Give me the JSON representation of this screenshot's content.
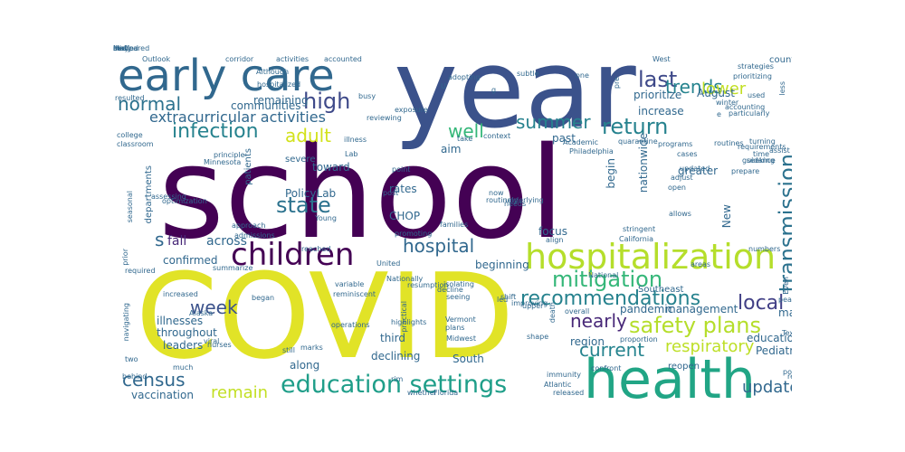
{
  "words": [
    {
      "text": "school",
      "color": "#440154"
    },
    {
      "text": "COVID",
      "color": "#e1e327"
    },
    {
      "text": "year",
      "color": "#3b528b"
    },
    {
      "text": "health",
      "color": "#21a585"
    },
    {
      "text": "early care",
      "color": "#31688e"
    },
    {
      "text": "hospitalization",
      "color": "#b5de2b"
    },
    {
      "text": "children",
      "color": "#440154"
    },
    {
      "text": "education settings",
      "color": "#1f9e89"
    },
    {
      "text": "transmission",
      "color": "#2c728e"
    },
    {
      "text": "safety plans",
      "color": "#b5de2b"
    },
    {
      "text": "mitigation",
      "color": "#35b779"
    },
    {
      "text": "recommendations",
      "color": "#26828e"
    },
    {
      "text": "infection",
      "color": "#26828e"
    },
    {
      "text": "return",
      "color": "#26828e"
    },
    {
      "text": "hospital",
      "color": "#31688e"
    },
    {
      "text": "summer",
      "color": "#26828e"
    },
    {
      "text": "census",
      "color": "#31688e"
    },
    {
      "text": "nearly",
      "color": "#482878"
    },
    {
      "text": "high",
      "color": "#3e4989"
    },
    {
      "text": "respiratory",
      "color": "#bddf26"
    },
    {
      "text": "state",
      "color": "#2c728e"
    },
    {
      "text": "current",
      "color": "#25838e"
    },
    {
      "text": "update",
      "color": "#31688e"
    },
    {
      "text": "local",
      "color": "#424086"
    },
    {
      "text": "last",
      "color": "#3e4989"
    },
    {
      "text": "trends",
      "color": "#25838e"
    },
    {
      "text": "remain",
      "color": "#c2df23"
    },
    {
      "text": "normal",
      "color": "#2c728e"
    },
    {
      "text": "week",
      "color": "#3b528b"
    },
    {
      "text": "adult",
      "color": "#d2e21b"
    },
    {
      "text": "lower",
      "color": "#c2df23"
    },
    {
      "text": "well",
      "color": "#35b779"
    },
    {
      "text": "extracurricular activities",
      "color": "#31688e"
    },
    {
      "text": "s",
      "color": "#31688e"
    },
    {
      "text": "fall",
      "color": "#482878"
    },
    {
      "text": "across",
      "color": "#31688e"
    },
    {
      "text": "illnesses",
      "color": "#31688e"
    },
    {
      "text": "throughout",
      "color": "#31688e"
    },
    {
      "text": "leaders",
      "color": "#31688e"
    },
    {
      "text": "confirmed",
      "color": "#31688e"
    },
    {
      "text": "vaccination",
      "color": "#31688e"
    },
    {
      "text": "declining",
      "color": "#31688e"
    },
    {
      "text": "third",
      "color": "#31688e"
    },
    {
      "text": "along",
      "color": "#31688e"
    },
    {
      "text": "South",
      "color": "#31688e"
    },
    {
      "text": "pandemic",
      "color": "#31688e"
    },
    {
      "text": "management",
      "color": "#31688e"
    },
    {
      "text": "education",
      "color": "#31688e"
    },
    {
      "text": "Pediatric",
      "color": "#31688e"
    },
    {
      "text": "rates",
      "color": "#31688e"
    },
    {
      "text": "CHOP",
      "color": "#31688e"
    },
    {
      "text": "PolicyLab",
      "color": "#31688e"
    },
    {
      "text": "toward",
      "color": "#31688e"
    },
    {
      "text": "severe",
      "color": "#31688e"
    },
    {
      "text": "patients",
      "color": "#31688e"
    },
    {
      "text": "departments",
      "color": "#31688e"
    },
    {
      "text": "focus",
      "color": "#31688e"
    },
    {
      "text": "beginning",
      "color": "#31688e"
    },
    {
      "text": "nationwide",
      "color": "#31688e"
    },
    {
      "text": "begin",
      "color": "#31688e"
    },
    {
      "text": "greater",
      "color": "#31688e"
    },
    {
      "text": "prioritize",
      "color": "#31688e"
    },
    {
      "text": "increase",
      "color": "#31688e"
    },
    {
      "text": "August",
      "color": "#31688e"
    },
    {
      "text": "past",
      "color": "#31688e"
    },
    {
      "text": "aim",
      "color": "#31688e"
    },
    {
      "text": "remaining",
      "color": "#31688e"
    },
    {
      "text": "communities",
      "color": "#31688e"
    },
    {
      "text": "New",
      "color": "#31688e"
    },
    {
      "text": "many",
      "color": "#31688e"
    },
    {
      "text": "region",
      "color": "#31688e"
    },
    {
      "text": "country",
      "color": "#31688e"
    },
    {
      "text": "strategies",
      "color": "#31688e"
    },
    {
      "text": "prioritizing",
      "color": "#31688e"
    },
    {
      "text": "particularly",
      "color": "#31688e"
    },
    {
      "text": "winter",
      "color": "#31688e"
    },
    {
      "text": "routines",
      "color": "#31688e"
    },
    {
      "text": "requirements",
      "color": "#31688e"
    },
    {
      "text": "prepare",
      "color": "#31688e"
    },
    {
      "text": "updated",
      "color": "#31688e"
    },
    {
      "text": "cases",
      "color": "#31688e"
    },
    {
      "text": "programs",
      "color": "#31688e"
    },
    {
      "text": "open",
      "color": "#31688e"
    },
    {
      "text": "allows",
      "color": "#31688e"
    },
    {
      "text": "reopen",
      "color": "#31688e"
    },
    {
      "text": "Southeast",
      "color": "#31688e"
    },
    {
      "text": "overall",
      "color": "#31688e"
    },
    {
      "text": "improving",
      "color": "#31688e"
    },
    {
      "text": "Vermont",
      "color": "#31688e"
    },
    {
      "text": "plans",
      "color": "#31688e"
    },
    {
      "text": "Midwest",
      "color": "#31688e"
    },
    {
      "text": "Alaska",
      "color": "#31688e"
    },
    {
      "text": "began",
      "color": "#31688e"
    },
    {
      "text": "nurses",
      "color": "#31688e"
    },
    {
      "text": "still",
      "color": "#31688e"
    },
    {
      "text": "marks",
      "color": "#31688e"
    },
    {
      "text": "operations",
      "color": "#31688e"
    },
    {
      "text": "highlights",
      "color": "#31688e"
    },
    {
      "text": "resumption",
      "color": "#31688e"
    },
    {
      "text": "seeing",
      "color": "#31688e"
    },
    {
      "text": "isolating",
      "color": "#31688e"
    },
    {
      "text": "shift",
      "color": "#31688e"
    },
    {
      "text": "led",
      "color": "#31688e"
    },
    {
      "text": "death",
      "color": "#31688e"
    },
    {
      "text": "Texas",
      "color": "#31688e"
    },
    {
      "text": "peak",
      "color": "#31688e"
    },
    {
      "text": "Even",
      "color": "#31688e"
    },
    {
      "text": "ready",
      "color": "#31688e"
    },
    {
      "text": "population",
      "color": "#31688e"
    },
    {
      "text": "proportion",
      "color": "#31688e"
    },
    {
      "text": "confront",
      "color": "#31688e"
    },
    {
      "text": "immunity",
      "color": "#31688e"
    },
    {
      "text": "Atlantic",
      "color": "#31688e"
    },
    {
      "text": "released",
      "color": "#31688e"
    },
    {
      "text": "Florida",
      "color": "#31688e"
    },
    {
      "text": "whether",
      "color": "#31688e"
    },
    {
      "text": "rim",
      "color": "#31688e"
    },
    {
      "text": "much",
      "color": "#31688e"
    },
    {
      "text": "behind",
      "color": "#31688e"
    },
    {
      "text": "two",
      "color": "#31688e"
    },
    {
      "text": "viral",
      "color": "#31688e"
    },
    {
      "text": "increased",
      "color": "#31688e"
    },
    {
      "text": "navigating",
      "color": "#31688e"
    },
    {
      "text": "required",
      "color": "#31688e"
    },
    {
      "text": "prior",
      "color": "#31688e"
    },
    {
      "text": "seasonal",
      "color": "#31688e"
    },
    {
      "text": "optimization",
      "color": "#31688e"
    },
    {
      "text": "assessing",
      "color": "#31688e"
    },
    {
      "text": "Minnesota",
      "color": "#31688e"
    },
    {
      "text": "principle",
      "color": "#31688e"
    },
    {
      "text": "college",
      "color": "#31688e"
    },
    {
      "text": "classroom",
      "color": "#31688e"
    },
    {
      "text": "resulted",
      "color": "#31688e"
    },
    {
      "text": "Outlook",
      "color": "#31688e"
    },
    {
      "text": "corridor",
      "color": "#31688e"
    },
    {
      "text": "activities",
      "color": "#31688e"
    },
    {
      "text": "accounted",
      "color": "#31688e"
    },
    {
      "text": "Although",
      "color": "#31688e"
    },
    {
      "text": "hospitalized",
      "color": "#31688e"
    },
    {
      "text": "busy",
      "color": "#31688e"
    },
    {
      "text": "exposure",
      "color": "#31688e"
    },
    {
      "text": "reviewing",
      "color": "#31688e"
    },
    {
      "text": "U",
      "color": "#31688e"
    },
    {
      "text": "illness",
      "color": "#31688e"
    },
    {
      "text": "Lab",
      "color": "#31688e"
    },
    {
      "text": "take",
      "color": "#31688e"
    },
    {
      "text": "context",
      "color": "#31688e"
    },
    {
      "text": "quarantine",
      "color": "#31688e"
    },
    {
      "text": "Academic",
      "color": "#31688e"
    },
    {
      "text": "Philadelphia",
      "color": "#31688e"
    },
    {
      "text": "now",
      "color": "#31688e"
    },
    {
      "text": "needs",
      "color": "#31688e"
    },
    {
      "text": "routinely",
      "color": "#31688e"
    },
    {
      "text": "underlying",
      "color": "#31688e"
    },
    {
      "text": "point",
      "color": "#31688e"
    },
    {
      "text": "post",
      "color": "#31688e"
    },
    {
      "text": "Young",
      "color": "#31688e"
    },
    {
      "text": "approach",
      "color": "#31688e"
    },
    {
      "text": "admissions",
      "color": "#31688e"
    },
    {
      "text": "reached",
      "color": "#31688e"
    },
    {
      "text": "families",
      "color": "#31688e"
    },
    {
      "text": "promoting",
      "color": "#31688e"
    },
    {
      "text": "United",
      "color": "#31688e"
    },
    {
      "text": "align",
      "color": "#31688e"
    },
    {
      "text": "California",
      "color": "#31688e"
    },
    {
      "text": "areas",
      "color": "#31688e"
    },
    {
      "text": "numbers",
      "color": "#31688e"
    },
    {
      "text": "National",
      "color": "#31688e"
    },
    {
      "text": "summarize",
      "color": "#31688e"
    },
    {
      "text": "variable",
      "color": "#31688e"
    },
    {
      "text": "reminiscent",
      "color": "#31688e"
    },
    {
      "text": "Nationally",
      "color": "#31688e"
    },
    {
      "text": "decline",
      "color": "#31688e"
    },
    {
      "text": "practical",
      "color": "#31688e"
    },
    {
      "text": "upper",
      "color": "#31688e"
    },
    {
      "text": "shape",
      "color": "#31688e"
    },
    {
      "text": "subtle",
      "color": "#31688e"
    },
    {
      "text": "adopting",
      "color": "#31688e"
    },
    {
      "text": "one",
      "color": "#31688e"
    },
    {
      "text": "g",
      "color": "#31688e"
    },
    {
      "text": "pre",
      "color": "#31688e"
    },
    {
      "text": "West",
      "color": "#31688e"
    },
    {
      "text": "accounting",
      "color": "#31688e"
    },
    {
      "text": "e",
      "color": "#31688e"
    },
    {
      "text": "used",
      "color": "#31688e"
    },
    {
      "text": "less",
      "color": "#31688e"
    },
    {
      "text": "turning",
      "color": "#31688e"
    },
    {
      "text": "time",
      "color": "#31688e"
    },
    {
      "text": "assist",
      "color": "#31688e"
    },
    {
      "text": "guidance",
      "color": "#31688e"
    },
    {
      "text": "adjust",
      "color": "#31688e"
    },
    {
      "text": "seeking",
      "color": "#31688e"
    },
    {
      "text": "stringent",
      "color": "#31688e"
    },
    {
      "text": "early",
      "color": "#31688e"
    },
    {
      "text": "compared",
      "color": "#31688e"
    },
    {
      "text": "neared",
      "color": "#31688e"
    },
    {
      "text": "staff",
      "color": "#31688e"
    },
    {
      "text": "ll",
      "color": "#31688e"
    },
    {
      "text": "may",
      "color": "#31688e"
    },
    {
      "text": "Mid",
      "color": "#31688e"
    }
  ]
}
